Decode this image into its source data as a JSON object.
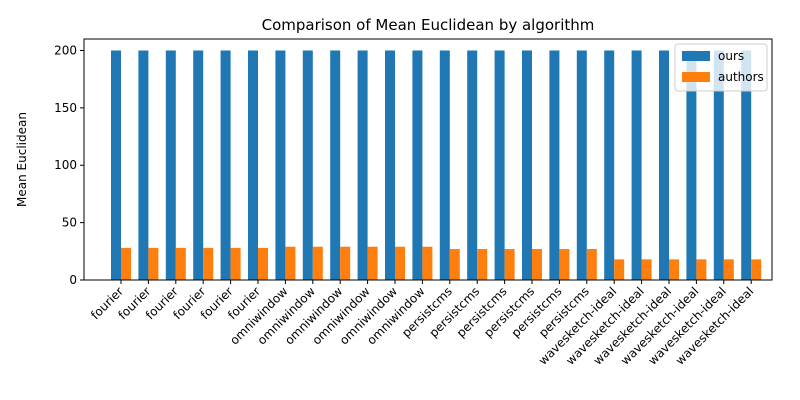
{
  "chart_data": {
    "type": "bar",
    "title": "Comparison of Mean Euclidean by algorithm",
    "xlabel": "",
    "ylabel": "Mean Euclidean",
    "ylim": [
      0,
      210
    ],
    "yticks": [
      0,
      50,
      100,
      150,
      200
    ],
    "legend_position": "top-right",
    "grid": false,
    "categories": [
      "fourier",
      "fourier",
      "fourier",
      "fourier",
      "fourier",
      "fourier",
      "omniwindow",
      "omniwindow",
      "omniwindow",
      "omniwindow",
      "omniwindow",
      "omniwindow",
      "persistcms",
      "persistcms",
      "persistcms",
      "persistcms",
      "persistcms",
      "persistcms",
      "wavesketch-ideal",
      "wavesketch-ideal",
      "wavesketch-ideal",
      "wavesketch-ideal",
      "wavesketch-ideal",
      "wavesketch-ideal"
    ],
    "series": [
      {
        "name": "ours",
        "color": "#1f77b4",
        "values": [
          200,
          200,
          200,
          200,
          200,
          200,
          200,
          200,
          200,
          200,
          200,
          200,
          200,
          200,
          200,
          200,
          200,
          200,
          200,
          200,
          200,
          200,
          200,
          200
        ]
      },
      {
        "name": "authors",
        "color": "#ff7f0e",
        "values": [
          28,
          28,
          28,
          28,
          28,
          28,
          29,
          29,
          29,
          29,
          29,
          29,
          27,
          27,
          27,
          27,
          27,
          27,
          18,
          18,
          18,
          18,
          18,
          18
        ]
      }
    ]
  }
}
